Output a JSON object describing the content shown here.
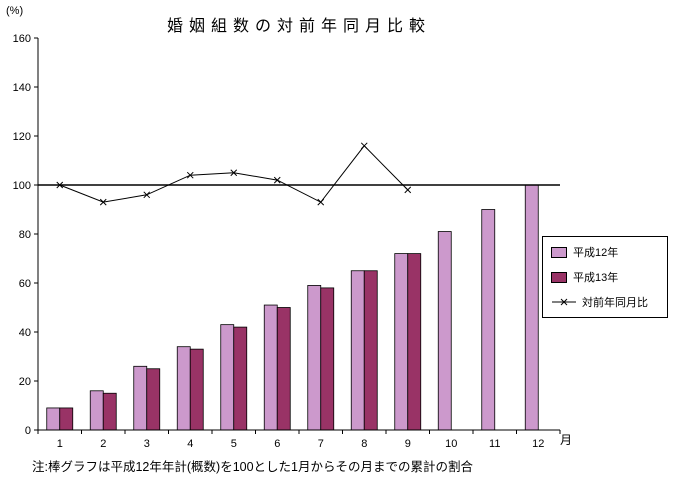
{
  "chart_data": {
    "type": "bar",
    "title": "婚姻組数の対前年同月比較",
    "y_unit": "(%)",
    "x_unit": "月",
    "note": "注:棒グラフは平成12年年計(概数)を100とした1月からその月までの累計の割合",
    "categories": [
      "1",
      "2",
      "3",
      "4",
      "5",
      "6",
      "7",
      "8",
      "9",
      "10",
      "11",
      "12"
    ],
    "ylim": [
      0,
      160
    ],
    "y_ticks": [
      0,
      20,
      40,
      60,
      80,
      100,
      120,
      140,
      160
    ],
    "reference_line": 100,
    "grid": false,
    "legend_position": "right",
    "series": [
      {
        "name": "平成12年",
        "type": "bar",
        "color": "#CC99CC",
        "values": [
          9,
          16,
          26,
          34,
          43,
          51,
          59,
          65,
          72,
          81,
          90,
          100
        ]
      },
      {
        "name": "平成13年",
        "type": "bar",
        "color": "#993366",
        "values": [
          9,
          15,
          25,
          33,
          42,
          50,
          58,
          65,
          72,
          null,
          null,
          null
        ]
      },
      {
        "name": "対前年同月比",
        "type": "line",
        "color": "#000000",
        "marker": "x",
        "values": [
          100,
          93,
          96,
          104,
          105,
          102,
          93,
          116,
          98,
          null,
          null,
          null
        ]
      }
    ]
  }
}
